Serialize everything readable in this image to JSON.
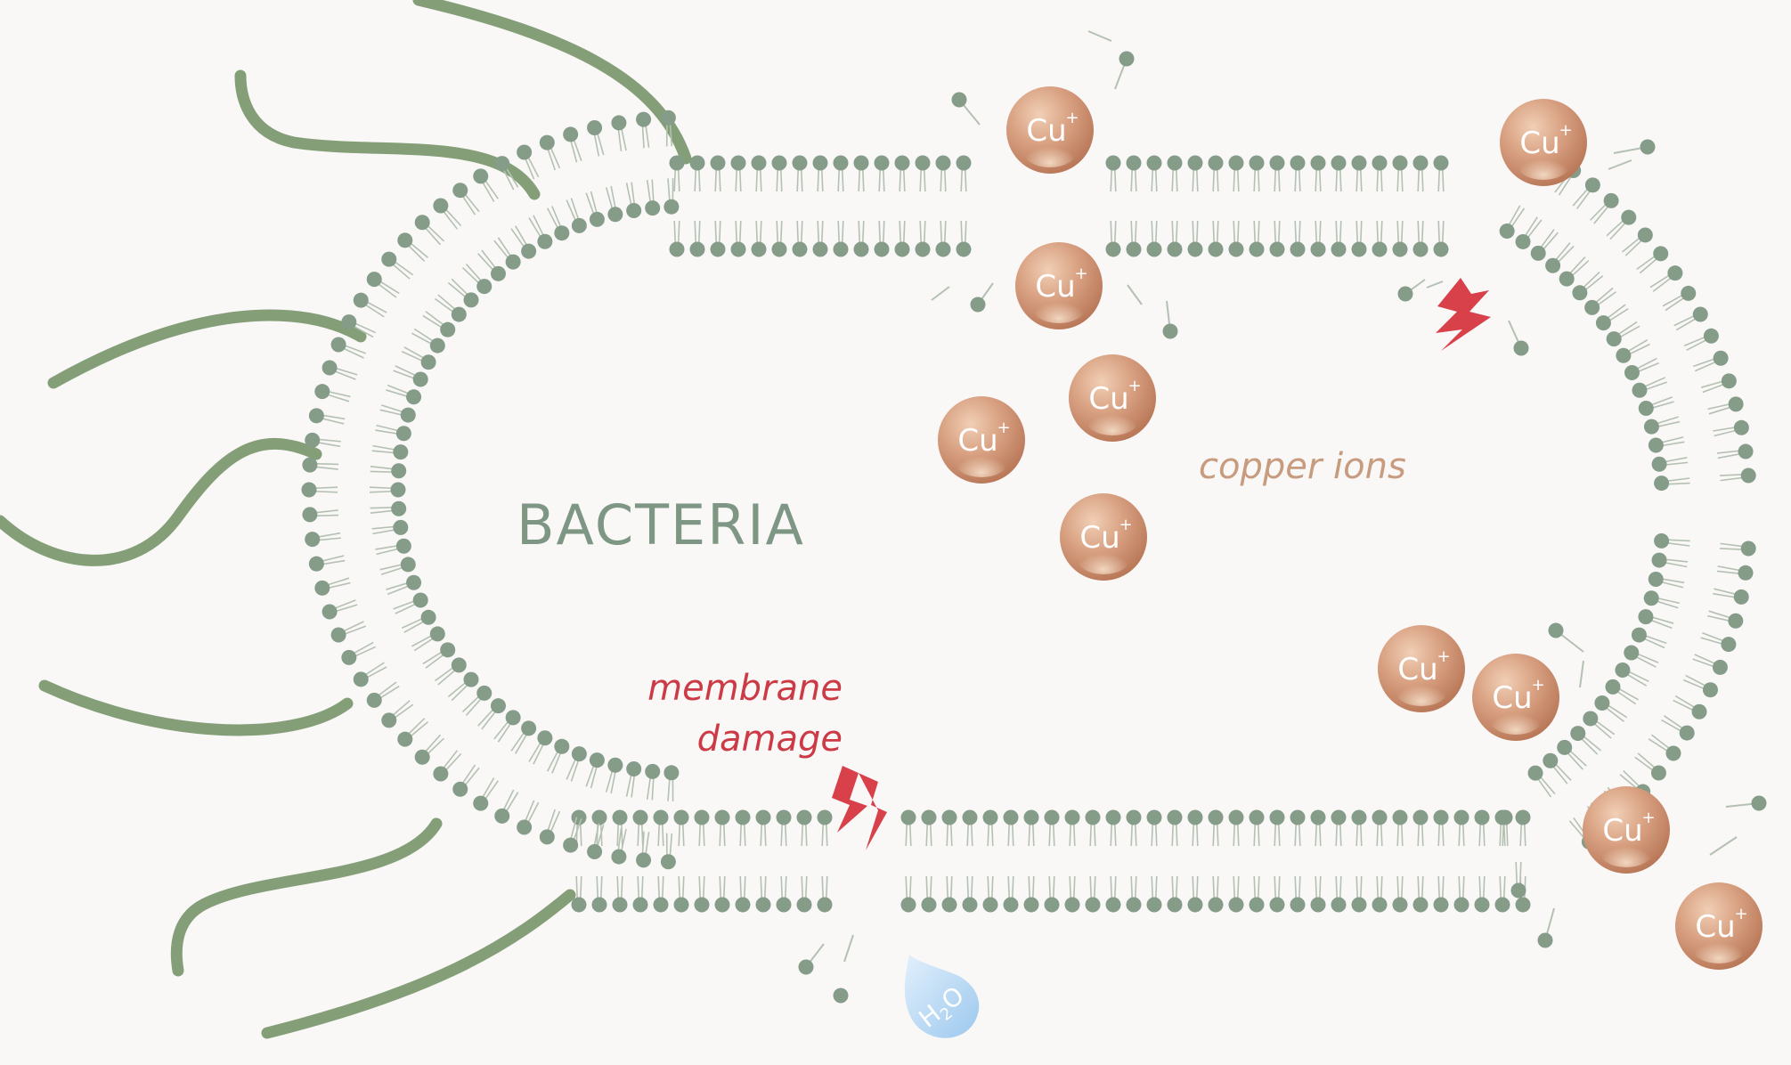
{
  "labels": {
    "organism": "BACTERIA",
    "ions": "copper ions",
    "damage_line1": "membrane",
    "damage_line2": "damage",
    "water": "H2O",
    "ion_symbol": "Cu",
    "ion_charge": "+"
  },
  "colors": {
    "background": "#faf7f7",
    "membrane_head": "#859c89",
    "membrane_tail": "#b4c1b2",
    "flagella": "#6e8f62",
    "organism_label": "#7e9684",
    "copper_label": "#c79b7e",
    "damage_label": "#cc3a45",
    "lightning": "#d8404a",
    "water_drop": "#a9d0f1",
    "copper_ion": "#c98f6e"
  },
  "icons": {
    "damage": "lightning-bolt-icon",
    "water": "water-drop-icon",
    "ion": "copper-ion-sphere-icon"
  }
}
